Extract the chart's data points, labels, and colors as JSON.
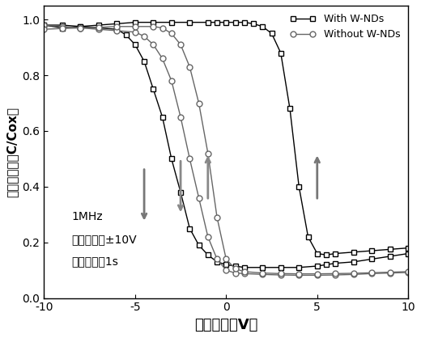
{
  "title": "",
  "xlabel": "扫描电压（V）",
  "ylabel": "标准化电容（C/Cox）",
  "xlim": [
    -10,
    10
  ],
  "ylim": [
    0,
    1.05
  ],
  "yticks": [
    0,
    0.2,
    0.4,
    0.6,
    0.8,
    1.0
  ],
  "xticks": [
    -10,
    -5,
    0,
    5,
    10
  ],
  "annotation_lines": [
    "1MHz",
    "扫描电压：±10V",
    "保持时间：1s"
  ],
  "legend_with": "With W-NDs",
  "legend_without": "Without W-NDs",
  "color_with": "#000000",
  "color_without": "#555555",
  "figsize": [
    5.2,
    4.18
  ],
  "dpi": 100,
  "with_wnd_forward_x": [
    -10,
    -9,
    -8,
    -7,
    -6,
    -5.5,
    -5.0,
    -4.5,
    -4.0,
    -3.5,
    -3.0,
    -2.5,
    -2.0,
    -1.5,
    -1.0,
    -0.5,
    0,
    0.5,
    1,
    2,
    3,
    4,
    5,
    5.5,
    6,
    7,
    8,
    9,
    10
  ],
  "with_wnd_forward_y": [
    0.98,
    0.98,
    0.975,
    0.97,
    0.965,
    0.945,
    0.91,
    0.85,
    0.75,
    0.65,
    0.5,
    0.38,
    0.25,
    0.19,
    0.155,
    0.13,
    0.12,
    0.115,
    0.11,
    0.11,
    0.11,
    0.11,
    0.115,
    0.12,
    0.125,
    0.13,
    0.14,
    0.15,
    0.16
  ],
  "with_wnd_backward_x": [
    10,
    9,
    8,
    7,
    6,
    5.5,
    5.0,
    4.5,
    4.0,
    3.5,
    3.0,
    2.5,
    2.0,
    1.5,
    1.0,
    0.5,
    0,
    -0.5,
    -1.0,
    -2,
    -3,
    -4,
    -5,
    -6,
    -7,
    -8,
    -9,
    -10
  ],
  "with_wnd_backward_y": [
    0.18,
    0.175,
    0.17,
    0.165,
    0.16,
    0.155,
    0.16,
    0.22,
    0.4,
    0.68,
    0.88,
    0.95,
    0.975,
    0.985,
    0.99,
    0.99,
    0.99,
    0.99,
    0.99,
    0.99,
    0.99,
    0.99,
    0.99,
    0.985,
    0.98,
    0.975,
    0.97,
    0.98
  ],
  "without_wnd_forward_x": [
    -10,
    -9,
    -8,
    -7,
    -6,
    -5,
    -4.5,
    -4.0,
    -3.5,
    -3.0,
    -2.5,
    -2.0,
    -1.5,
    -1.0,
    -0.5,
    0,
    0.5,
    1,
    2,
    3,
    4,
    5,
    6,
    7,
    8,
    9,
    10
  ],
  "without_wnd_forward_y": [
    0.98,
    0.975,
    0.97,
    0.965,
    0.96,
    0.955,
    0.94,
    0.91,
    0.86,
    0.78,
    0.65,
    0.5,
    0.36,
    0.22,
    0.14,
    0.1,
    0.09,
    0.088,
    0.085,
    0.083,
    0.082,
    0.082,
    0.083,
    0.085,
    0.088,
    0.09,
    0.092
  ],
  "without_wnd_backward_x": [
    10,
    9,
    8,
    7,
    6,
    5,
    4,
    3,
    2,
    1,
    0.5,
    0,
    -0.5,
    -1.0,
    -1.5,
    -2.0,
    -2.5,
    -3.0,
    -3.5,
    -4.0,
    -5,
    -6,
    -7,
    -8,
    -9,
    -10
  ],
  "without_wnd_backward_y": [
    0.095,
    0.093,
    0.091,
    0.089,
    0.088,
    0.087,
    0.087,
    0.088,
    0.09,
    0.095,
    0.105,
    0.14,
    0.29,
    0.52,
    0.7,
    0.83,
    0.91,
    0.95,
    0.97,
    0.975,
    0.975,
    0.975,
    0.972,
    0.97,
    0.968,
    0.965
  ]
}
